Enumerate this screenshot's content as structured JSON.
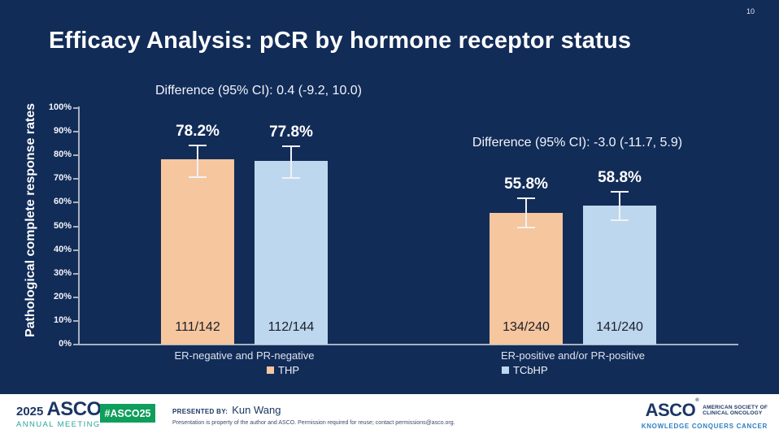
{
  "meta": {
    "page_number": "10"
  },
  "colors": {
    "background": "#122c58",
    "axis": "#a8b0bf",
    "badge_green": "#0f9e5c",
    "teal": "#2aa49b",
    "navy_text": "#1c3664",
    "tagline_blue": "#2e7fc1"
  },
  "chart_data": {
    "type": "bar",
    "title": "Efficacy Analysis: pCR by hormone receptor status",
    "ylabel": "Pathological complete response rates",
    "xlabel": "",
    "ylim": [
      0,
      100
    ],
    "grid": false,
    "legend_position": "bottom",
    "yticks": [
      "0%",
      "10%",
      "20%",
      "30%",
      "40%",
      "50%",
      "60%",
      "70%",
      "80%",
      "90%",
      "100%"
    ],
    "categories": [
      "ER-negative and PR-negative",
      "ER-positive and/or PR-positive"
    ],
    "series": [
      {
        "name": "THP",
        "color": "#f6c69e",
        "values": [
          78.2,
          55.8
        ],
        "value_labels": [
          "78.2%",
          "55.8%"
        ],
        "counts": [
          "111/142",
          "134/240"
        ],
        "ci": [
          [
            70.3,
            84.7
          ],
          [
            49.3,
            62.2
          ]
        ]
      },
      {
        "name": "TCbHP",
        "color": "#bdd7ee",
        "values": [
          77.8,
          58.8
        ],
        "value_labels": [
          "77.8%",
          "58.8%"
        ],
        "counts": [
          "112/144",
          "141/240"
        ],
        "ci": [
          [
            70.0,
            84.3
          ],
          [
            52.3,
            65.0
          ]
        ]
      }
    ],
    "annotations": [
      {
        "text": "Difference (95% CI): 0.4 (-9.2, 10.0)",
        "group": 0
      },
      {
        "text": "Difference (95% CI): -3.0 (-11.7, 5.9)",
        "group": 1
      }
    ]
  },
  "footer": {
    "left_logo": {
      "year": "2025",
      "name": "ASCO",
      "registered": "®",
      "subtitle": "ANNUAL MEETING"
    },
    "badge": "#ASCO25",
    "presented_label": "PRESENTED BY:",
    "presenter": "Kun Wang",
    "disclaimer": "Presentation is property of the author and ASCO. Permission required for reuse; contact permissions@asco.org.",
    "right_logo": {
      "name": "ASCO",
      "registered": "®",
      "society_line1": "AMERICAN SOCIETY OF",
      "society_line2": "CLINICAL ONCOLOGY",
      "tagline": "KNOWLEDGE CONQUERS CANCER"
    }
  }
}
